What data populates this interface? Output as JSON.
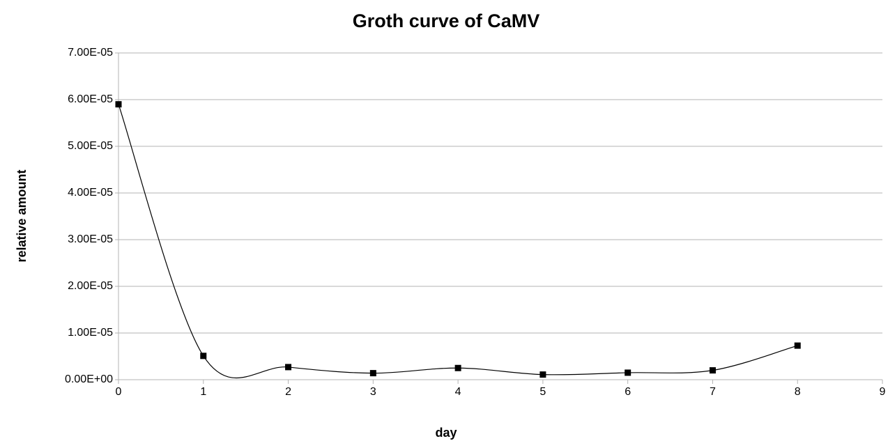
{
  "chart_data": {
    "type": "line",
    "title": "Groth curve of CaMV",
    "x_label": "day",
    "y_label": "relative amount",
    "x": [
      0,
      1,
      2,
      3,
      4,
      5,
      6,
      7,
      8
    ],
    "series": [
      {
        "name": "relative amount",
        "color": "#000000",
        "values": [
          5.9e-05,
          5.1e-06,
          2.7e-06,
          1.4e-06,
          2.5e-06,
          1.1e-06,
          1.5e-06,
          2e-06,
          7.3e-06
        ]
      }
    ],
    "smooth": true,
    "xlim": [
      0,
      9
    ],
    "xticks": [
      0,
      1,
      2,
      3,
      4,
      5,
      6,
      7,
      8,
      9
    ],
    "ylim": [
      0,
      7e-05
    ],
    "yticks": [
      {
        "value": 0,
        "label": "0.00E+00"
      },
      {
        "value": 1e-05,
        "label": "1.00E-05"
      },
      {
        "value": 2e-05,
        "label": "2.00E-05"
      },
      {
        "value": 3e-05,
        "label": "3.00E-05"
      },
      {
        "value": 4e-05,
        "label": "4.00E-05"
      },
      {
        "value": 5e-05,
        "label": "5.00E-05"
      },
      {
        "value": 6e-05,
        "label": "6.00E-05"
      },
      {
        "value": 7e-05,
        "label": "7.00E-05"
      }
    ],
    "grid": true
  }
}
